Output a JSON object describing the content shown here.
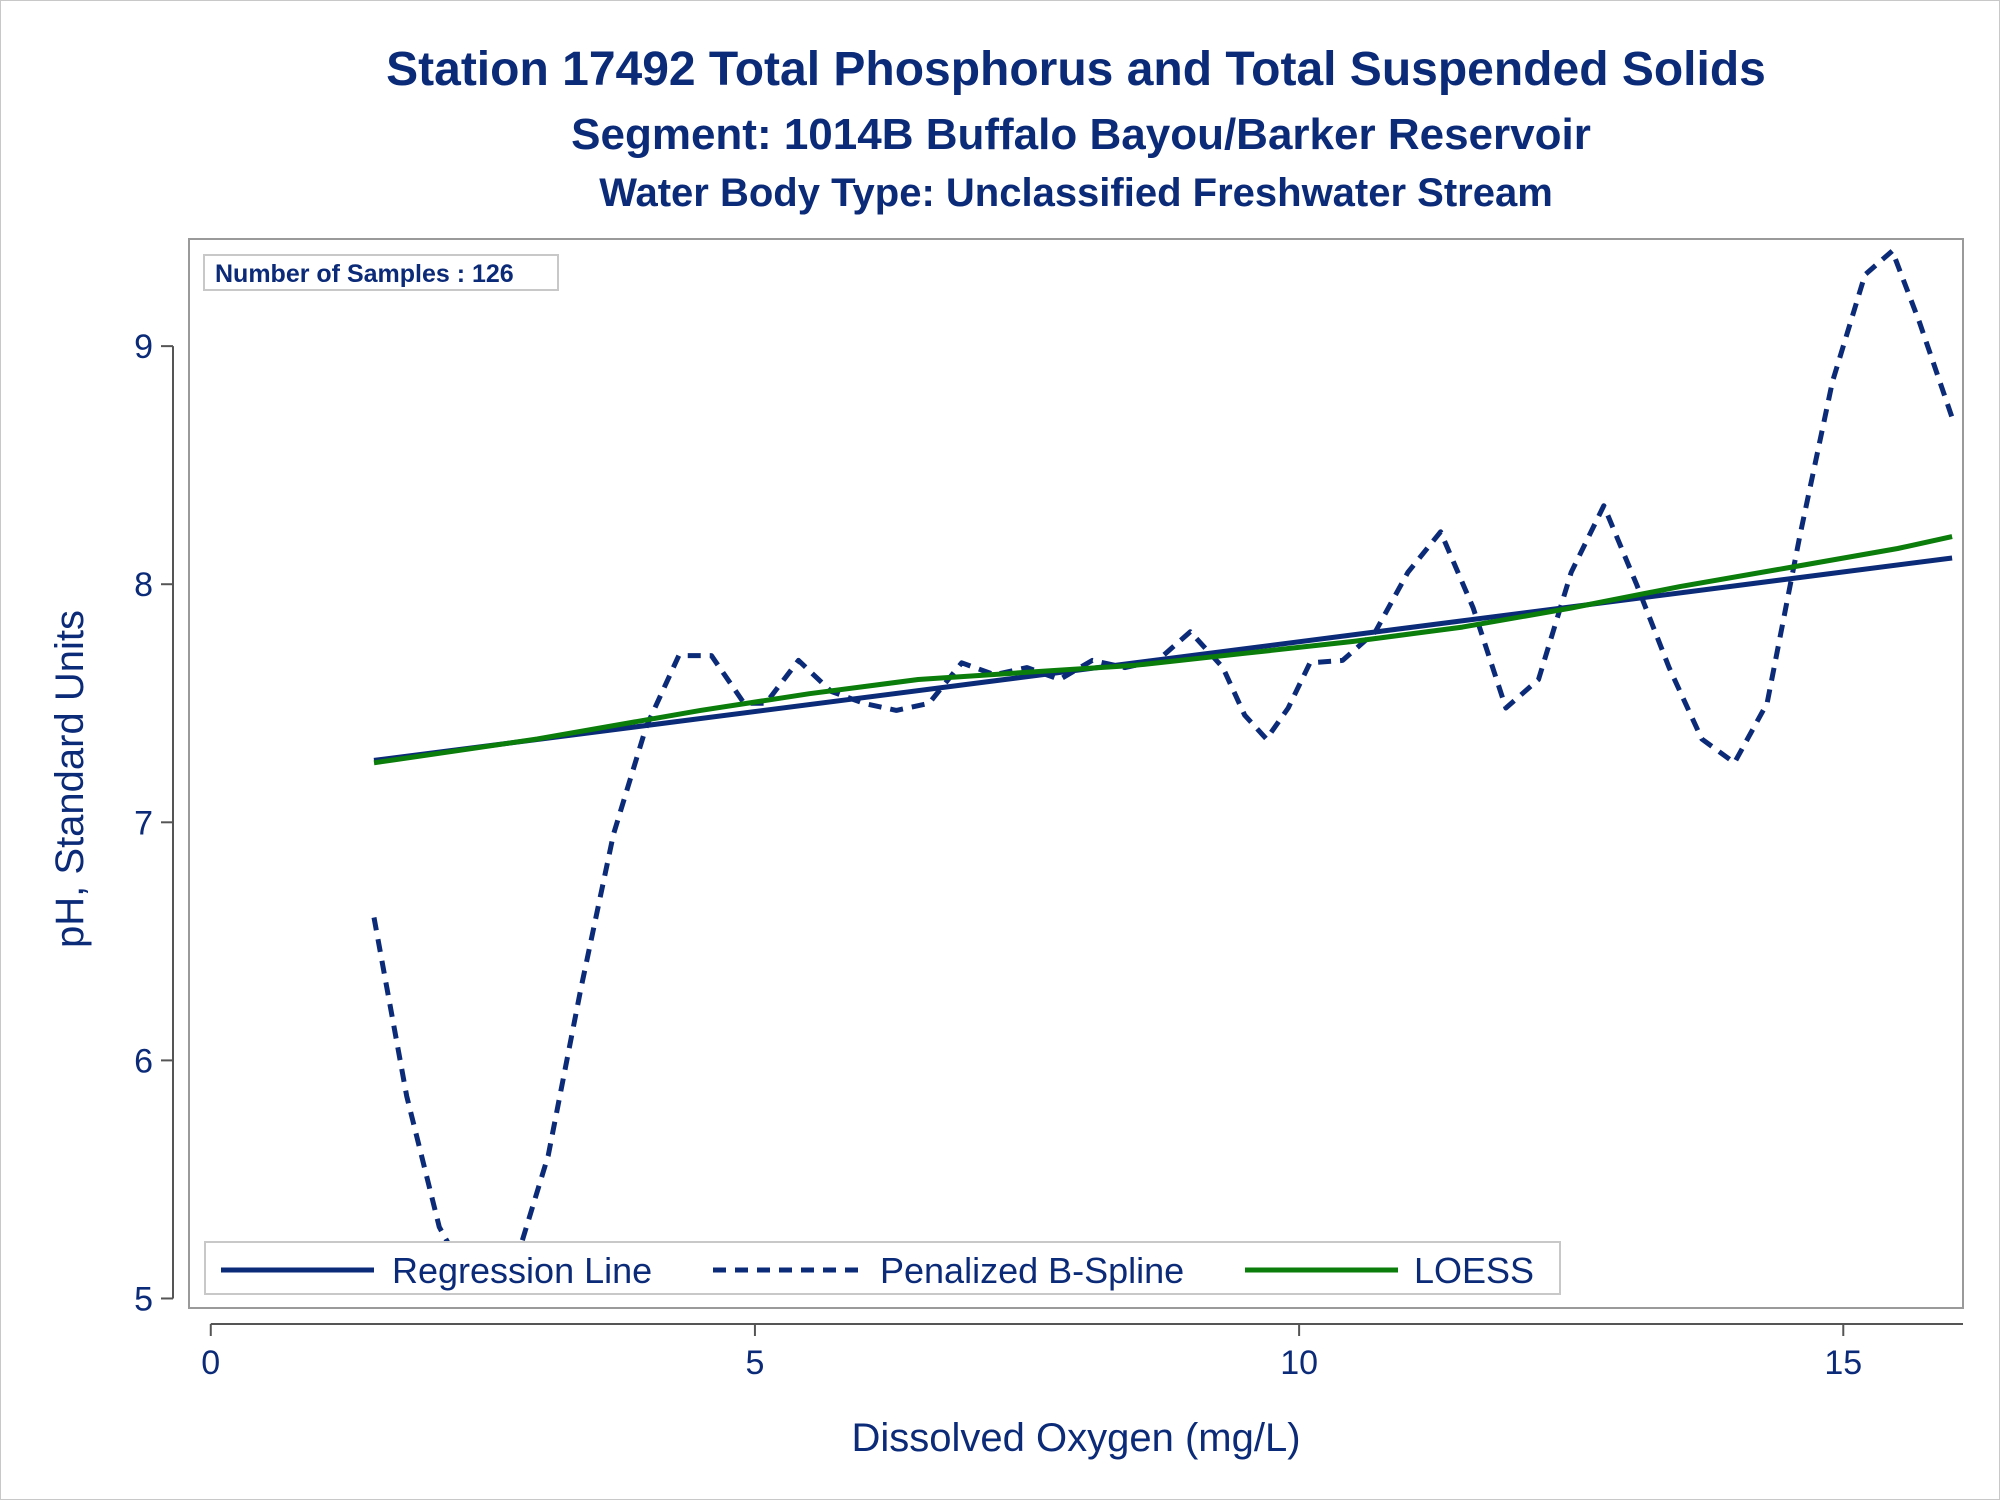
{
  "chart_data": {
    "type": "line",
    "title": "Station 17492  Total Phosphorus and Total Suspended Solids",
    "subtitle": "Segment: 1014B  Buffalo Bayou/Barker Reservoir",
    "subtitle2": "Water Body Type: Unclassified Freshwater Stream",
    "xlabel": "Dissolved Oxygen (mg/L)",
    "ylabel": "pH, Standard Units",
    "xlim": [
      -0.2,
      16.1
    ],
    "ylim": [
      4.96,
      9.45
    ],
    "xticks": [
      0,
      5,
      10,
      15
    ],
    "yticks": [
      5,
      6,
      7,
      8,
      9
    ],
    "grid": false,
    "legend_position": "bottom-left-inside",
    "annotation": "Number of Samples : 126",
    "series": [
      {
        "name": "Regression Line",
        "style": "solid",
        "color": "#0b2a78",
        "x": [
          1.5,
          16.0
        ],
        "y": [
          7.26,
          8.11
        ]
      },
      {
        "name": "Penalized B-Spline",
        "style": "dashed",
        "color": "#0b2a78",
        "x": [
          1.5,
          1.8,
          2.1,
          2.4,
          2.6,
          2.8,
          3.1,
          3.4,
          3.7,
          4.0,
          4.3,
          4.6,
          4.9,
          5.1,
          5.4,
          5.7,
          6.0,
          6.3,
          6.6,
          6.9,
          7.2,
          7.5,
          7.8,
          8.1,
          8.4,
          8.7,
          9.0,
          9.3,
          9.5,
          9.7,
          9.9,
          10.1,
          10.4,
          10.7,
          11.0,
          11.3,
          11.6,
          11.9,
          12.2,
          12.5,
          12.8,
          13.1,
          13.4,
          13.7,
          14.0,
          14.3,
          14.6,
          14.9,
          15.2,
          15.45,
          15.7,
          16.0
        ],
        "y": [
          6.6,
          5.85,
          5.3,
          5.05,
          5.05,
          5.15,
          5.6,
          6.3,
          6.95,
          7.4,
          7.7,
          7.7,
          7.5,
          7.5,
          7.68,
          7.55,
          7.5,
          7.47,
          7.5,
          7.67,
          7.62,
          7.65,
          7.6,
          7.68,
          7.65,
          7.68,
          7.8,
          7.65,
          7.45,
          7.35,
          7.48,
          7.67,
          7.68,
          7.8,
          8.05,
          8.22,
          7.9,
          7.48,
          7.6,
          8.05,
          8.33,
          8.0,
          7.65,
          7.35,
          7.25,
          7.5,
          8.2,
          8.85,
          9.3,
          9.4,
          9.1,
          8.7
        ]
      },
      {
        "name": "LOESS",
        "style": "solid",
        "color": "#0a7d0a",
        "x": [
          1.5,
          3.0,
          4.5,
          5.5,
          6.5,
          7.5,
          8.5,
          9.5,
          10.5,
          11.5,
          12.5,
          13.5,
          14.5,
          15.5,
          16.0
        ],
        "y": [
          7.25,
          7.35,
          7.47,
          7.54,
          7.6,
          7.63,
          7.66,
          7.71,
          7.76,
          7.82,
          7.9,
          7.99,
          8.07,
          8.15,
          8.2
        ]
      }
    ]
  }
}
